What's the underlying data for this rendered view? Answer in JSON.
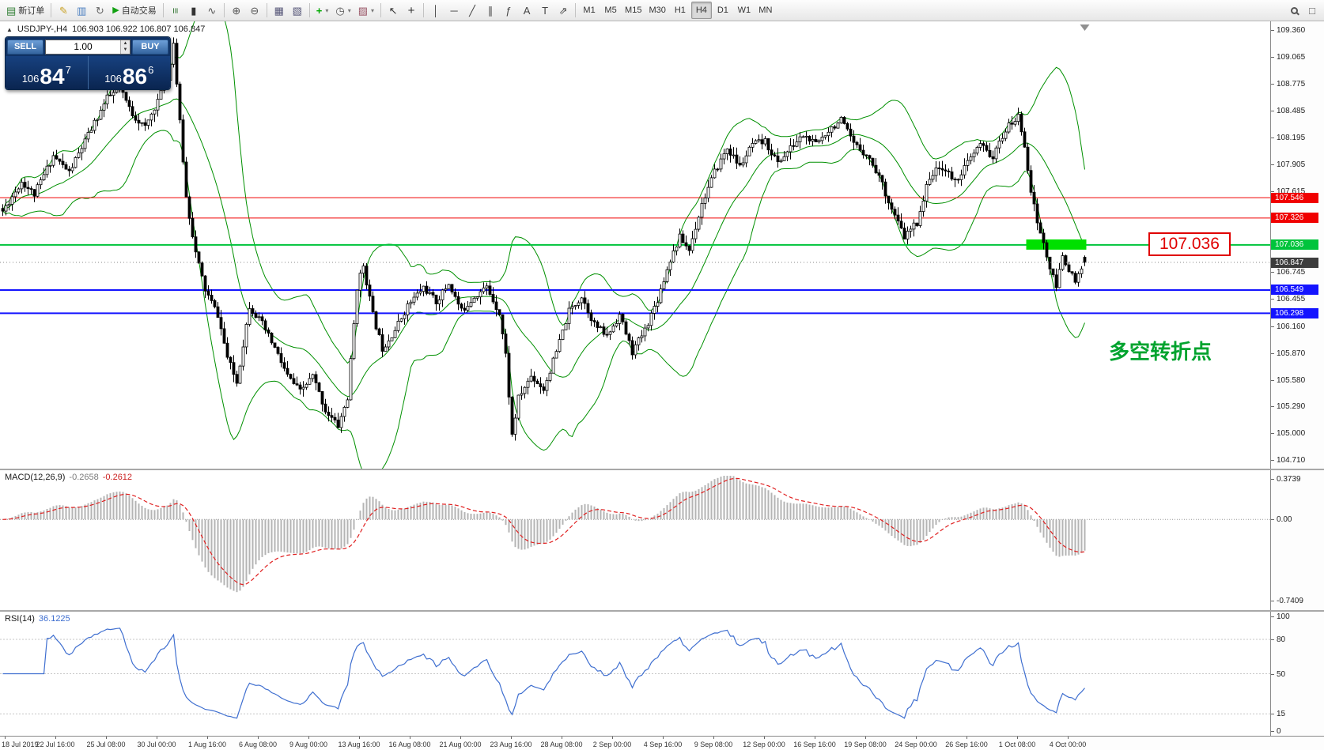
{
  "toolbar": {
    "new_order": "新订单",
    "autotrading": "自动交易",
    "timeframes": [
      "M1",
      "M5",
      "M15",
      "M30",
      "H1",
      "H4",
      "D1",
      "W1",
      "MN"
    ],
    "active_timeframe": "H4"
  },
  "trade_panel": {
    "sell_label": "SELL",
    "buy_label": "BUY",
    "volume": "1.00",
    "sell_price_prefix": "106",
    "sell_price_big": "84",
    "sell_price_sup": "7",
    "buy_price_prefix": "106",
    "buy_price_big": "86",
    "buy_price_sup": "6"
  },
  "chart_header": {
    "symbol_period": "USDJPY-,H4",
    "ohlc": "106.903 106.922 106.807 106.847"
  },
  "chart_data": {
    "type": "candlestick",
    "symbol": "USDJPY-",
    "period": "H4",
    "current_bid": 106.847,
    "current_ohlc": [
      106.903,
      106.922,
      106.807,
      106.847
    ],
    "y_range": [
      104.62,
      109.45
    ],
    "y_ticks": [
      109.36,
      109.065,
      108.775,
      108.485,
      108.195,
      107.905,
      107.615,
      106.745,
      106.455,
      106.16,
      105.87,
      105.58,
      105.29,
      105.0,
      104.71
    ],
    "levels": [
      {
        "price": 107.546,
        "color": "#f00000",
        "width": 1,
        "label": "107.546"
      },
      {
        "price": 107.326,
        "color": "#f00000",
        "width": 1,
        "label": "107.326"
      },
      {
        "price": 107.036,
        "color": "#00c43c",
        "width": 2,
        "label": "107.036"
      },
      {
        "price": 106.549,
        "color": "#1414ff",
        "width": 2,
        "label": "106.549"
      },
      {
        "price": 106.298,
        "color": "#1414ff",
        "width": 2,
        "label": "106.298"
      }
    ],
    "bid_tag": {
      "price": 106.847,
      "label": "106.847",
      "color": "#3c3c3c"
    },
    "time_labels": [
      "18 Jul 2019",
      "22 Jul 16:00",
      "25 Jul 08:00",
      "30 Jul 00:00",
      "1 Aug 16:00",
      "6 Aug 08:00",
      "9 Aug 00:00",
      "13 Aug 16:00",
      "16 Aug 08:00",
      "21 Aug 00:00",
      "23 Aug 16:00",
      "28 Aug 08:00",
      "2 Sep 00:00",
      "4 Sep 16:00",
      "9 Sep 08:00",
      "12 Sep 00:00",
      "16 Sep 16:00",
      "19 Sep 08:00",
      "24 Sep 00:00",
      "26 Sep 16:00",
      "1 Oct 08:00",
      "4 Oct 00:00"
    ],
    "bars_total": 343,
    "price_path_anchors": [
      [
        0,
        107.4
      ],
      [
        6,
        107.72
      ],
      [
        10,
        107.58
      ],
      [
        16,
        108.0
      ],
      [
        21,
        107.82
      ],
      [
        27,
        108.22
      ],
      [
        33,
        108.62
      ],
      [
        37,
        108.72
      ],
      [
        41,
        108.45
      ],
      [
        45,
        108.3
      ],
      [
        49,
        108.6
      ],
      [
        52,
        108.82
      ],
      [
        54,
        109.22
      ],
      [
        56,
        108.35
      ],
      [
        58,
        107.55
      ],
      [
        61,
        106.95
      ],
      [
        64,
        106.55
      ],
      [
        68,
        106.28
      ],
      [
        71,
        105.82
      ],
      [
        74,
        105.55
      ],
      [
        78,
        106.38
      ],
      [
        82,
        106.18
      ],
      [
        86,
        105.92
      ],
      [
        90,
        105.62
      ],
      [
        94,
        105.45
      ],
      [
        98,
        105.62
      ],
      [
        102,
        105.25
      ],
      [
        106,
        105.08
      ],
      [
        109,
        105.38
      ],
      [
        112,
        106.58
      ],
      [
        114,
        106.82
      ],
      [
        117,
        106.28
      ],
      [
        120,
        105.92
      ],
      [
        124,
        106.12
      ],
      [
        128,
        106.38
      ],
      [
        133,
        106.58
      ],
      [
        137,
        106.42
      ],
      [
        141,
        106.62
      ],
      [
        145,
        106.32
      ],
      [
        149,
        106.48
      ],
      [
        153,
        106.58
      ],
      [
        157,
        106.3
      ],
      [
        159,
        105.85
      ],
      [
        161,
        104.98
      ],
      [
        163,
        105.38
      ],
      [
        167,
        105.62
      ],
      [
        171,
        105.48
      ],
      [
        175,
        105.88
      ],
      [
        179,
        106.32
      ],
      [
        183,
        106.48
      ],
      [
        187,
        106.18
      ],
      [
        191,
        106.05
      ],
      [
        195,
        106.28
      ],
      [
        199,
        105.88
      ],
      [
        203,
        106.12
      ],
      [
        207,
        106.45
      ],
      [
        211,
        106.88
      ],
      [
        214,
        107.12
      ],
      [
        217,
        106.98
      ],
      [
        221,
        107.48
      ],
      [
        225,
        107.82
      ],
      [
        229,
        108.08
      ],
      [
        233,
        107.88
      ],
      [
        237,
        108.12
      ],
      [
        241,
        108.15
      ],
      [
        245,
        107.92
      ],
      [
        249,
        108.08
      ],
      [
        253,
        108.22
      ],
      [
        257,
        108.12
      ],
      [
        261,
        108.28
      ],
      [
        265,
        108.38
      ],
      [
        269,
        108.12
      ],
      [
        273,
        108.02
      ],
      [
        277,
        107.78
      ],
      [
        281,
        107.42
      ],
      [
        285,
        107.12
      ],
      [
        289,
        107.28
      ],
      [
        293,
        107.78
      ],
      [
        297,
        107.88
      ],
      [
        301,
        107.72
      ],
      [
        305,
        107.92
      ],
      [
        309,
        108.12
      ],
      [
        313,
        107.98
      ],
      [
        317,
        108.28
      ],
      [
        321,
        108.42
      ],
      [
        323,
        108.12
      ],
      [
        325,
        107.62
      ],
      [
        327,
        107.28
      ],
      [
        329,
        107.05
      ],
      [
        331,
        106.78
      ],
      [
        333,
        106.58
      ],
      [
        335,
        106.92
      ],
      [
        337,
        106.78
      ],
      [
        339,
        106.62
      ],
      [
        342,
        106.85
      ]
    ],
    "bollinger": {
      "period": 20,
      "deviation": 2,
      "color": "#009000"
    },
    "macd": {
      "label": "MACD(12,26,9)",
      "value_main": "-0.2658",
      "value_signal": "-0.2612",
      "axis_max": "0.3739",
      "axis_zero": "0.00",
      "axis_min": "-0.7409",
      "histogram_color": "#b4b4b4",
      "signal_color": "#e02020"
    },
    "rsi": {
      "label": "RSI(14)",
      "value": "36.1225",
      "axis": [
        "100",
        "80",
        "50",
        "15",
        "0"
      ],
      "levels": [
        80,
        50,
        15
      ],
      "line_color": "#3f6fd0"
    },
    "annotations": {
      "callout_text": "107.036",
      "callout_price": 107.036,
      "callout_x": 1452,
      "note_text": "多空转折点",
      "note_price": 105.92,
      "note_x": 1402,
      "highlight_rect": {
        "bar_from": 324,
        "bar_to": 342,
        "price_top": 107.095,
        "price_bottom": 106.985,
        "color": "#00e000"
      }
    }
  }
}
